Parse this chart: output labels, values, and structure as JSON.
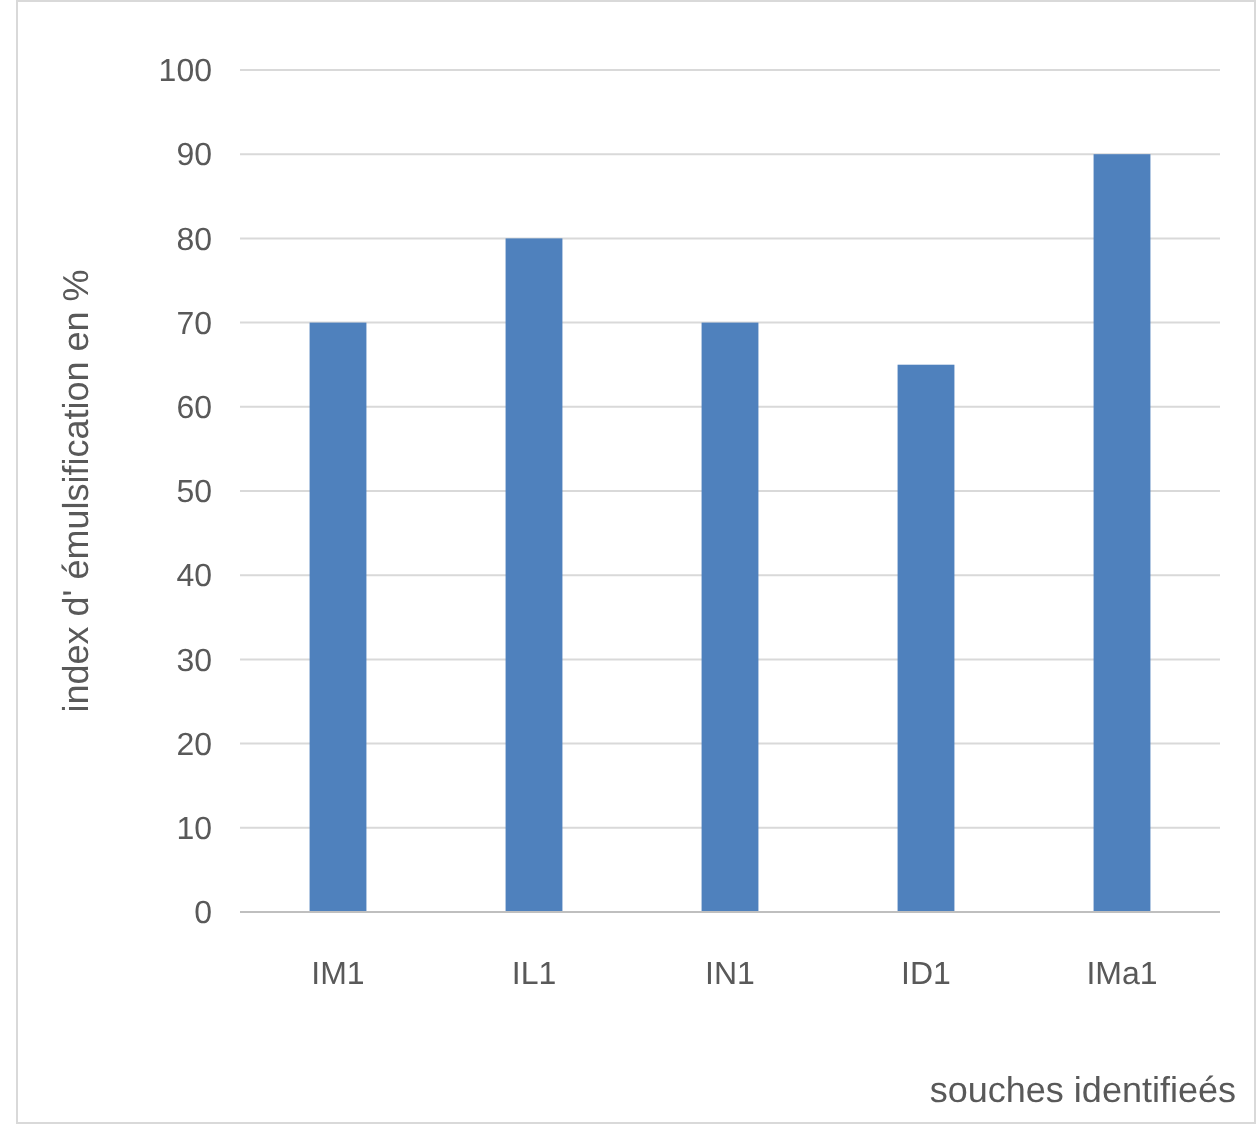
{
  "chart_data": {
    "type": "bar",
    "xlabel": "souches identifieés",
    "ylabel": "index d' émulsification en %",
    "categories": [
      "IM1",
      "IL1",
      "IN1",
      "ID1",
      "IMa1"
    ],
    "values": [
      70,
      80,
      70,
      65,
      90
    ],
    "color": "#4f81bd",
    "ylim": [
      0,
      100
    ],
    "yticks": [
      0,
      10,
      20,
      30,
      40,
      50,
      60,
      70,
      80,
      90,
      100
    ],
    "grid": "y"
  }
}
